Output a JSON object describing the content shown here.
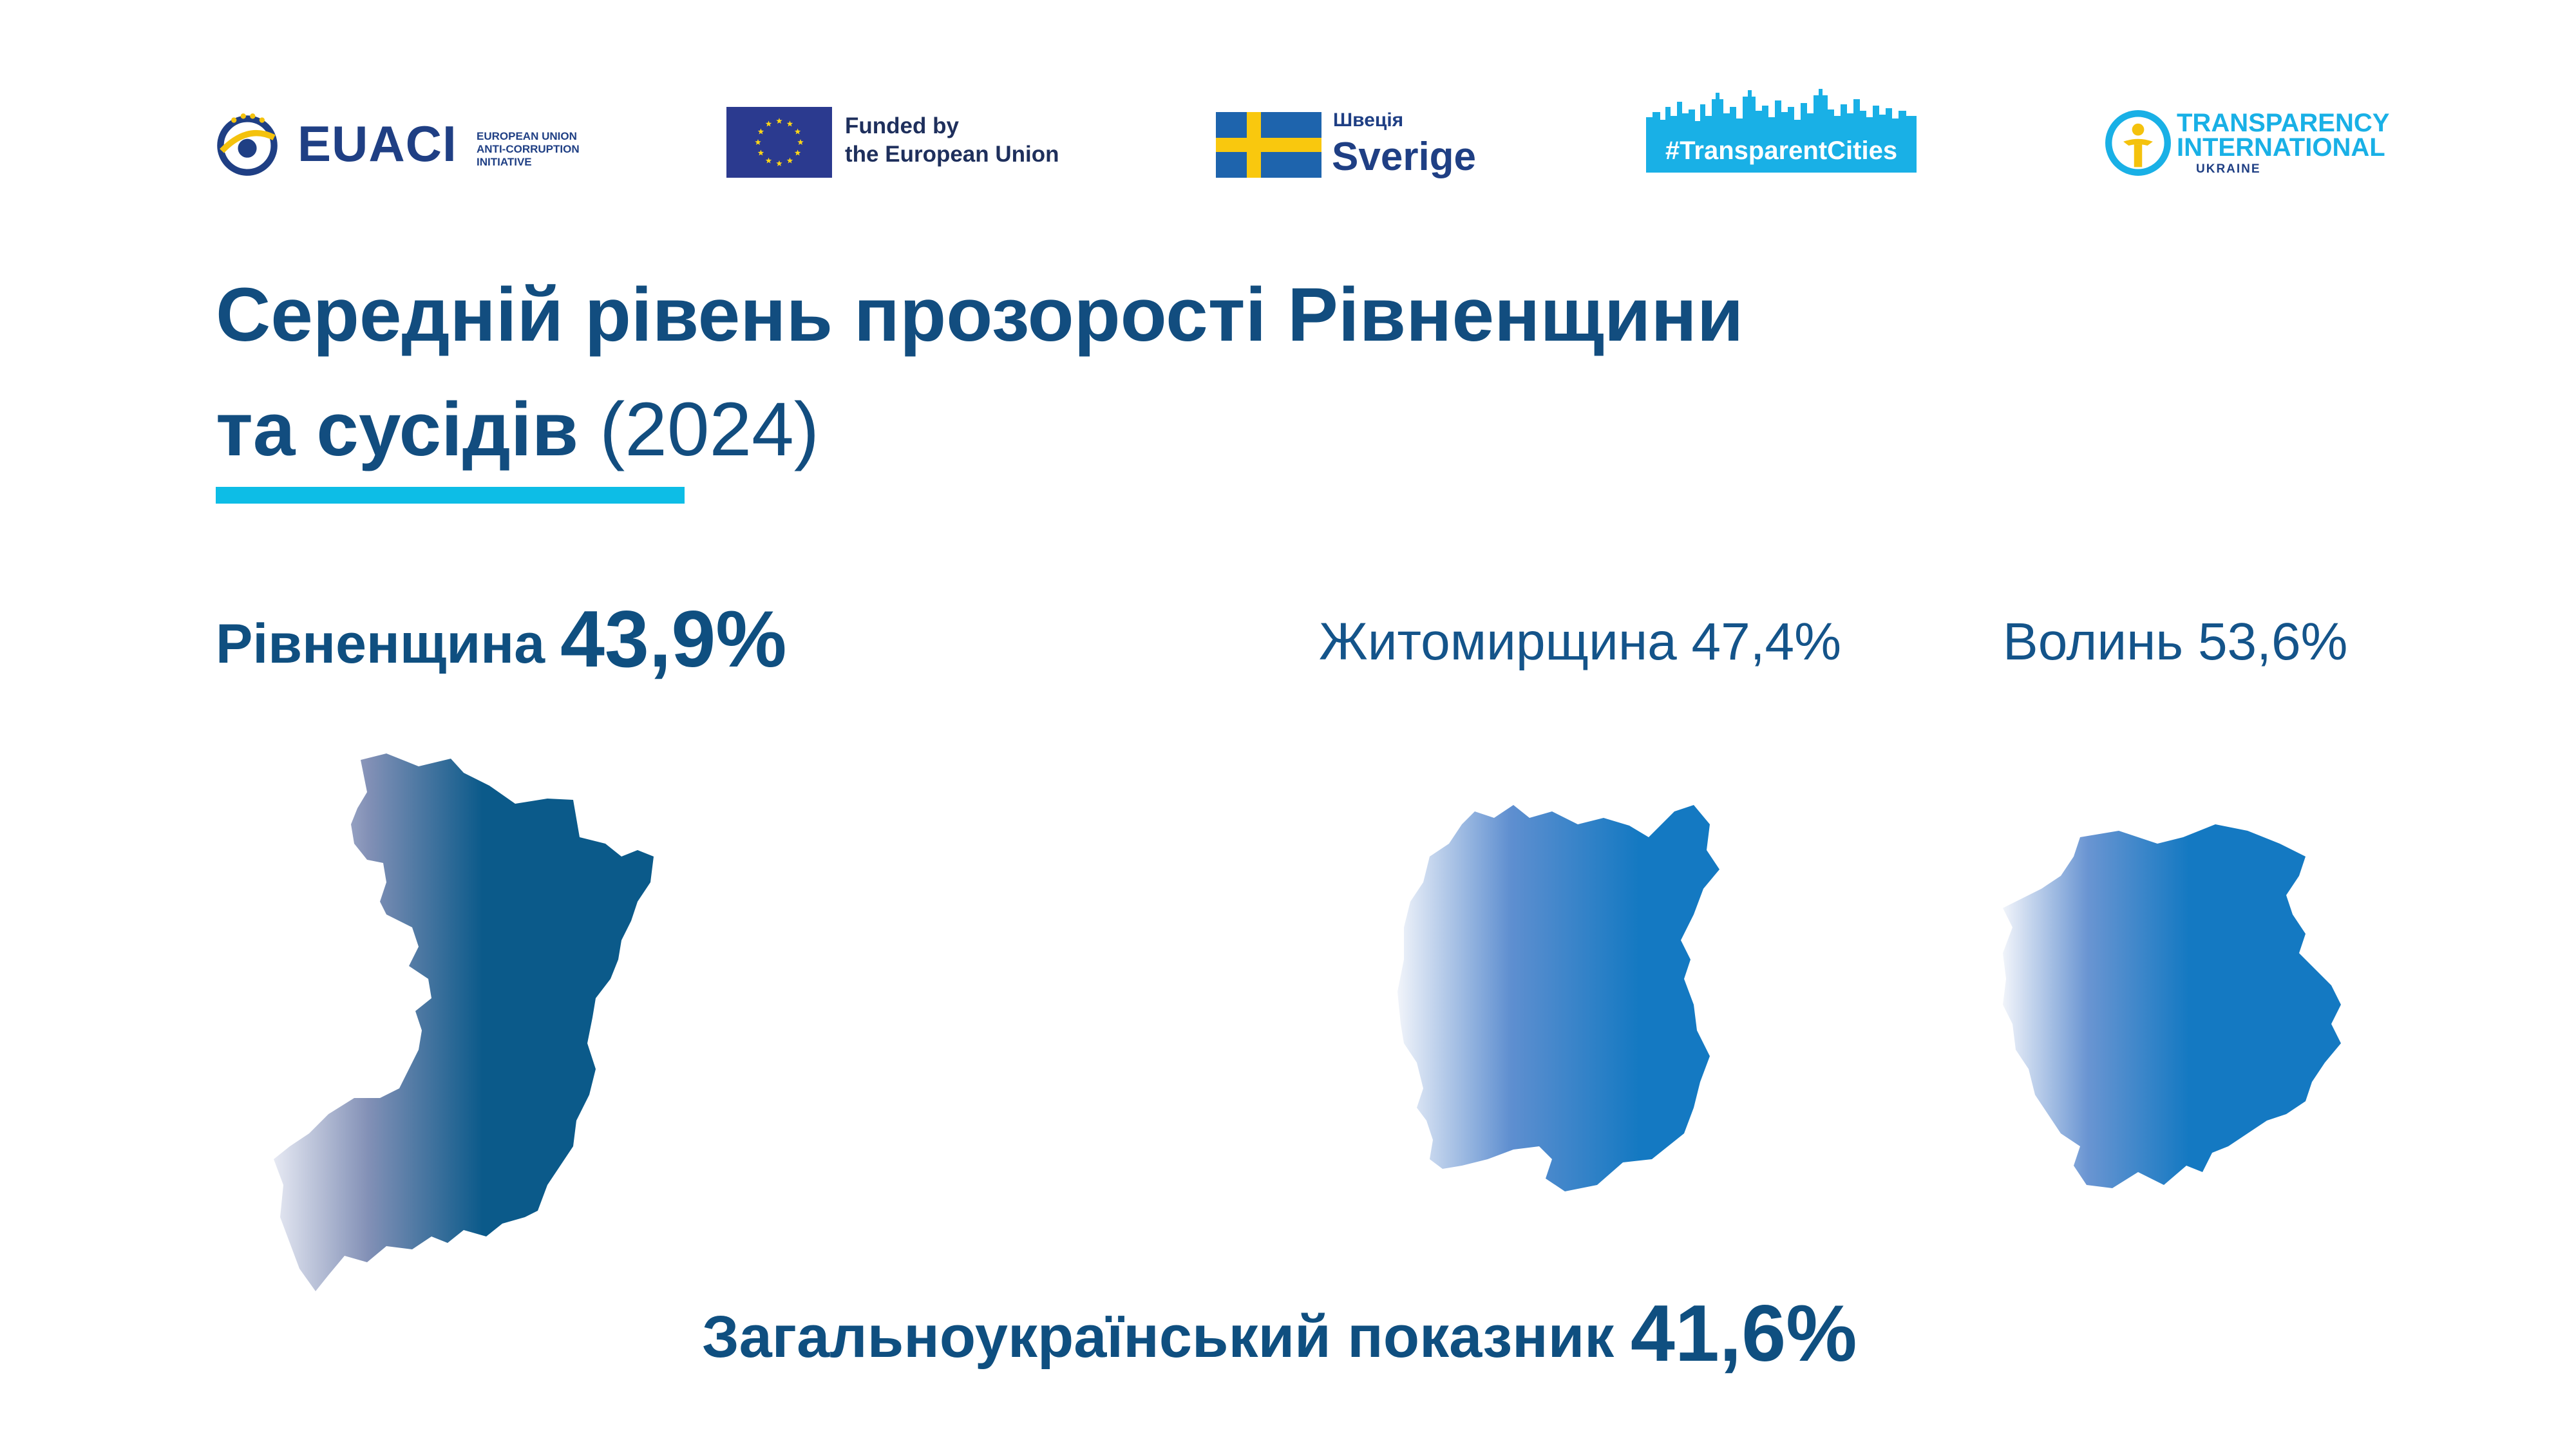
{
  "logos": {
    "euaci": {
      "name": "EUACI",
      "subtitle_lines": [
        "EUROPEAN UNION",
        "ANTI-CORRUPTION",
        "INITIATIVE"
      ]
    },
    "eu_funded": {
      "lines": [
        "Funded by",
        "the European Union"
      ]
    },
    "sweden": {
      "small": "Швеція",
      "big": "Sverige"
    },
    "transparent_cities": {
      "text": "#TransparentCities"
    },
    "ti_ukraine": {
      "lines": [
        "TRANSPARENCY",
        "INTERNATIONAL",
        "UKRAINE"
      ]
    }
  },
  "title": {
    "line1": "Середній рівень прозорості Рівненщини",
    "line2": "та сусідів",
    "year": "(2024)"
  },
  "regions": {
    "rivne": {
      "name": "Рівненщина",
      "value": "43,9%"
    },
    "zhytomyr": {
      "name": "Житомирщина",
      "value": "47,4%"
    },
    "volyn": {
      "name": "Волинь",
      "value": "53,6%"
    }
  },
  "national": {
    "label": "Загальноукраїнський показник",
    "value": "41,6%"
  },
  "colors": {
    "title": "#124d7f",
    "accent_line": "#0dbde6",
    "rivne_map": "#0b5a8a",
    "neighbor_map": "#1479c2",
    "eu_blue": "#2b3a8f",
    "eu_star": "#ffd617",
    "sweden_blue": "#1e64ad",
    "sweden_yellow": "#f9c80e",
    "tc_blue": "#19b0e6"
  }
}
